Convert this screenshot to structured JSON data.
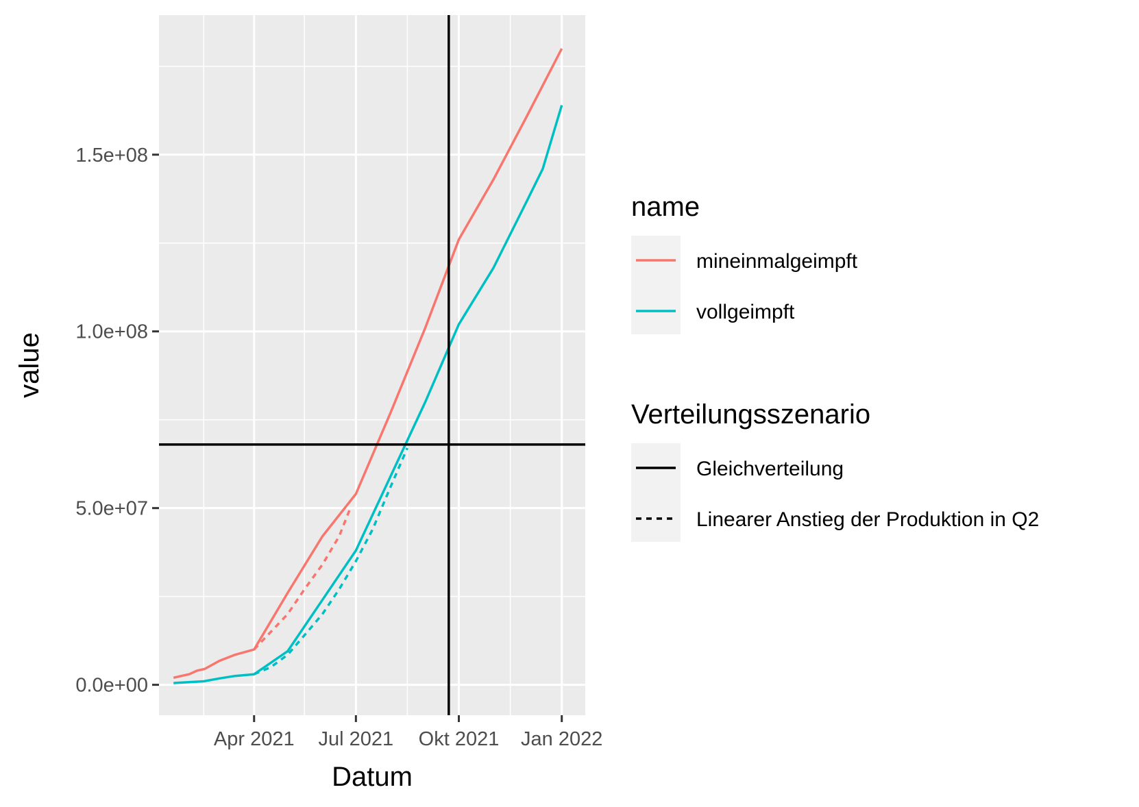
{
  "chart_data": {
    "type": "line",
    "xlabel": "Datum",
    "ylabel": "value",
    "x_ticks": [
      {
        "date": "2021-04-01",
        "label": "Apr 2021"
      },
      {
        "date": "2021-07-01",
        "label": "Jul 2021"
      },
      {
        "date": "2021-10-01",
        "label": "Okt 2021"
      },
      {
        "date": "2022-01-01",
        "label": "Jan 2022"
      }
    ],
    "x_minor_dates": [
      "2021-02-15",
      "2021-05-16",
      "2021-08-16",
      "2021-11-16"
    ],
    "x_range": [
      "2021-01-06",
      "2022-01-22"
    ],
    "y_ticks": [
      {
        "value": 0,
        "label": "0.0e+00"
      },
      {
        "value": 50000000,
        "label": "5.0e+07"
      },
      {
        "value": 100000000,
        "label": "1.0e+08"
      },
      {
        "value": 150000000,
        "label": "1.5e+08"
      }
    ],
    "y_minor_values": [
      25000000,
      75000000,
      125000000,
      175000000
    ],
    "y_range": [
      -8600000,
      189500000
    ],
    "grid": true,
    "reference_lines": {
      "vertical_date": "2021-09-22",
      "horizontal_value": 68000000
    },
    "series": [
      {
        "name": "mineinmalgeimpft",
        "color": "#F8766D",
        "linetype": "solid",
        "scenario": "Gleichverteilung",
        "points": [
          [
            "2021-01-19",
            2000000
          ],
          [
            "2021-01-26",
            2500000
          ],
          [
            "2021-02-02",
            3000000
          ],
          [
            "2021-02-09",
            4000000
          ],
          [
            "2021-02-16",
            4500000
          ],
          [
            "2021-03-01",
            6800000
          ],
          [
            "2021-03-15",
            8500000
          ],
          [
            "2021-04-01",
            10000000
          ],
          [
            "2021-05-01",
            26000000
          ],
          [
            "2021-06-01",
            42000000
          ],
          [
            "2021-07-01",
            54000000
          ],
          [
            "2021-08-01",
            77000000
          ],
          [
            "2021-09-01",
            101000000
          ],
          [
            "2021-10-01",
            126000000
          ],
          [
            "2021-11-01",
            143000000
          ],
          [
            "2021-12-01",
            161000000
          ],
          [
            "2022-01-01",
            180000000
          ]
        ]
      },
      {
        "name": "mineinmalgeimpft",
        "color": "#F8766D",
        "linetype": "dashed",
        "scenario": "Linearer Anstieg der Produktion in Q2",
        "points": [
          [
            "2021-04-01",
            10000000
          ],
          [
            "2021-04-16",
            15000000
          ],
          [
            "2021-05-01",
            20000000
          ],
          [
            "2021-05-16",
            27000000
          ],
          [
            "2021-06-01",
            34000000
          ],
          [
            "2021-06-16",
            42000000
          ],
          [
            "2021-06-26",
            50000000
          ]
        ]
      },
      {
        "name": "vollgeimpft",
        "color": "#00BFC4",
        "linetype": "solid",
        "scenario": "Gleichverteilung",
        "points": [
          [
            "2021-01-19",
            500000
          ],
          [
            "2021-02-15",
            1000000
          ],
          [
            "2021-03-01",
            1800000
          ],
          [
            "2021-03-15",
            2500000
          ],
          [
            "2021-04-01",
            3000000
          ],
          [
            "2021-05-01",
            9500000
          ],
          [
            "2021-06-01",
            24000000
          ],
          [
            "2021-07-01",
            38000000
          ],
          [
            "2021-08-01",
            59000000
          ],
          [
            "2021-09-01",
            80000000
          ],
          [
            "2021-10-01",
            102000000
          ],
          [
            "2021-11-01",
            118000000
          ],
          [
            "2021-12-01",
            137000000
          ],
          [
            "2021-12-15",
            146000000
          ],
          [
            "2022-01-01",
            164000000
          ]
        ]
      },
      {
        "name": "vollgeimpft",
        "color": "#00BFC4",
        "linetype": "dashed",
        "scenario": "Linearer Anstieg der Produktion in Q2",
        "points": [
          [
            "2021-04-01",
            3000000
          ],
          [
            "2021-04-16",
            5000000
          ],
          [
            "2021-05-01",
            8500000
          ],
          [
            "2021-05-16",
            14000000
          ],
          [
            "2021-06-01",
            20000000
          ],
          [
            "2021-06-16",
            27000000
          ],
          [
            "2021-07-01",
            35000000
          ],
          [
            "2021-07-16",
            44000000
          ],
          [
            "2021-08-01",
            56000000
          ],
          [
            "2021-08-16",
            67000000
          ]
        ]
      }
    ]
  },
  "legend": {
    "placement": "right",
    "color_title": "name",
    "color_items": [
      {
        "label": "mineinmalgeimpft",
        "color": "#F8766D"
      },
      {
        "label": "vollgeimpft",
        "color": "#00BFC4"
      }
    ],
    "linetype_title": "Verteilungsszenario",
    "linetype_items": [
      {
        "label": "Gleichverteilung",
        "linetype": "solid"
      },
      {
        "label": "Linearer Anstieg der Produktion in Q2",
        "linetype": "dashed"
      }
    ]
  }
}
